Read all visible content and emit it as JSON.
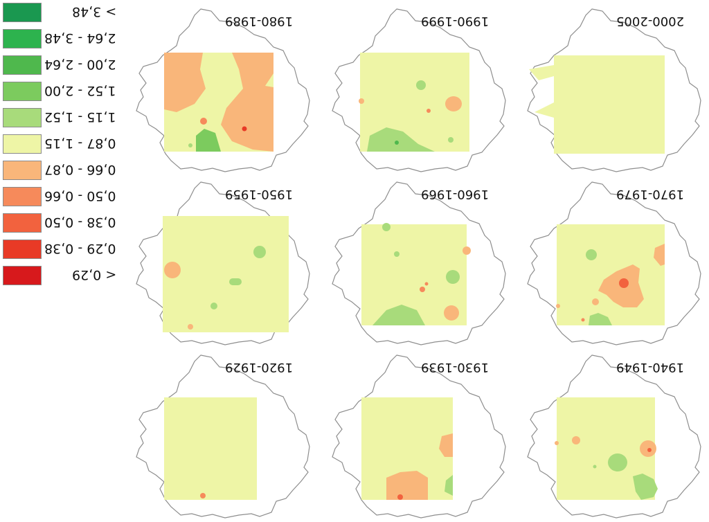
{
  "legend": [
    {
      "label": "> 3,48",
      "color": "#1a9850"
    },
    {
      "label": "2,64 - 3,48",
      "color": "#2db34e"
    },
    {
      "label": "2,00 - 2,64",
      "color": "#4fb84d"
    },
    {
      "label": "1,52 - 2,00",
      "color": "#7ccb5e"
    },
    {
      "label": "1,15 - 1,52",
      "color": "#a8db7b"
    },
    {
      "label": "0,87 - 1,15",
      "color": "#eef5a6"
    },
    {
      "label": "0,66 - 0,87",
      "color": "#f9b67a"
    },
    {
      "label": "0,50 - 0,66",
      "color": "#f68a5b"
    },
    {
      "label": "0,38 - 0,50",
      "color": "#f2623e"
    },
    {
      "label": "0,29 - 0,38",
      "color": "#e83a26"
    },
    {
      "label": "< 0,29",
      "color": "#d7191c"
    }
  ],
  "panels": [
    {
      "period": "1980-1989"
    },
    {
      "period": "1990-1999"
    },
    {
      "period": "2000-2005"
    },
    {
      "period": "1950-1959"
    },
    {
      "period": "1960-1969"
    },
    {
      "period": "1970-1979"
    },
    {
      "period": "1920-1929"
    },
    {
      "period": "1930-1939"
    },
    {
      "period": "1940-1949"
    }
  ]
}
